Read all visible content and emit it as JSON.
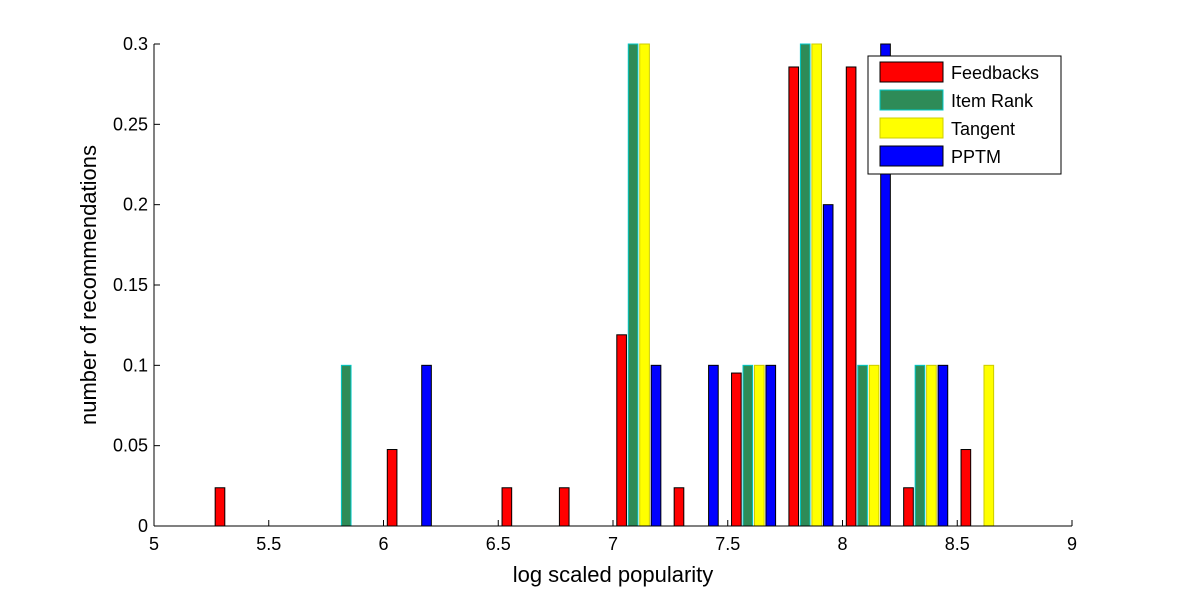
{
  "chart_data": {
    "type": "bar",
    "xlabel": "log scaled popularity",
    "ylabel": "number of recommendations",
    "xlim": [
      5,
      9
    ],
    "ylim": [
      0,
      0.3
    ],
    "xticks": [
      5,
      5.5,
      6,
      6.5,
      7,
      7.5,
      8,
      8.5,
      9
    ],
    "yticks": [
      0,
      0.05,
      0.1,
      0.15,
      0.2,
      0.25,
      0.3
    ],
    "xtick_labels": [
      "5",
      "5.5",
      "6",
      "6.5",
      "7",
      "7.5",
      "8",
      "8.5",
      "9"
    ],
    "ytick_labels": [
      "0",
      "0.05",
      "0.1",
      "0.15",
      "0.2",
      "0.25",
      "0.3"
    ],
    "grid": false,
    "legend_position": "top-right",
    "bin_centers": [
      5.1,
      5.35,
      5.6,
      5.85,
      6.1,
      6.35,
      6.6,
      6.85,
      7.1,
      7.35,
      7.6,
      7.85,
      8.1,
      8.35,
      8.6,
      8.85
    ],
    "series": [
      {
        "name": "Feedbacks",
        "color": "#ff0000",
        "offset": -0.0625,
        "values": [
          0,
          0.0238,
          0,
          0,
          0.0476,
          0,
          0.0238,
          0.0238,
          0.119,
          0.0238,
          0.0952,
          0.2857,
          0.2857,
          0.0238,
          0.0476,
          0
        ]
      },
      {
        "name": "Item Rank",
        "color": "#2e8b57",
        "edge": "#00c8c8",
        "offset": -0.0125,
        "values": [
          0,
          0,
          0,
          0.1,
          0,
          0,
          0,
          0,
          0.3,
          0,
          0.1,
          0.3,
          0.1,
          0.1,
          0,
          0
        ]
      },
      {
        "name": "Tangent",
        "color": "#ffff00",
        "edge": "#cccc00",
        "offset": 0.0375,
        "values": [
          0,
          0,
          0,
          0,
          0,
          0,
          0,
          0,
          0.3,
          0,
          0.1,
          0.3,
          0.1,
          0.1,
          0.1,
          0
        ]
      },
      {
        "name": "PPTM",
        "color": "#0000ff",
        "offset": 0.0875,
        "values": [
          0,
          0,
          0,
          0,
          0.1,
          0,
          0,
          0,
          0.1,
          0.1,
          0.1,
          0.2,
          0.3,
          0.1,
          0,
          0
        ]
      }
    ]
  }
}
